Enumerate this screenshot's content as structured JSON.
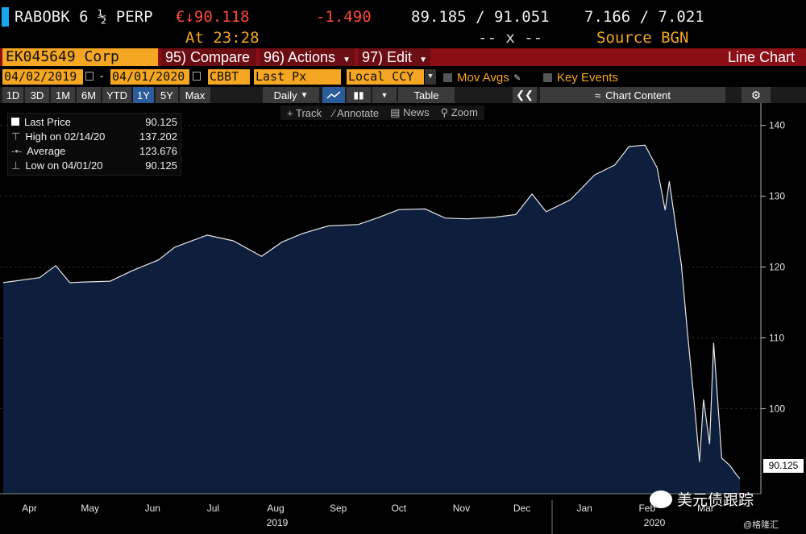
{
  "ticker": {
    "name": "RABOBK 6 ½ PERP",
    "price": "€↓90.118",
    "change": "-1.490",
    "bid_ask": "89.185 / 91.051",
    "yield": "7.166 / 7.021",
    "time": "At 23:28",
    "size": "-- x --",
    "source": "Source BGN"
  },
  "toolbar": {
    "security": "EK045649 Corp",
    "compare": "95) Compare",
    "actions": "96) Actions",
    "edit": "97) Edit",
    "chart_type": "Line Chart"
  },
  "controls": {
    "start_date": "04/02/2019",
    "end_date": "04/01/2020",
    "source": "CBBT",
    "field": "Last Px",
    "currency": "Local CCY",
    "mov_avgs": "Mov Avgs",
    "key_events": "Key Events"
  },
  "periods": [
    "1D",
    "3D",
    "1M",
    "6M",
    "YTD",
    "1Y",
    "5Y",
    "Max"
  ],
  "selected_period": "1Y",
  "frequency": "Daily",
  "table_label": "Table",
  "chart_content": "Chart Content",
  "tools": {
    "track": "Track",
    "annotate": "Annotate",
    "news": "News",
    "zoom": "Zoom"
  },
  "legend": {
    "last_label": "Last Price",
    "last_value": "90.125",
    "high_label": "High on 02/14/20",
    "high_value": "137.202",
    "avg_label": "Average",
    "avg_value": "123.676",
    "low_label": "Low on 04/01/20",
    "low_value": "90.125"
  },
  "last_tag": "90.125",
  "watermark": "美元债跟踪",
  "credit": "@格隆汇",
  "chart_data": {
    "type": "area",
    "ylim": [
      88,
      142
    ],
    "y_ticks": [
      100,
      110,
      120,
      130,
      140
    ],
    "x_ticks": [
      "Apr",
      "May",
      "Jun",
      "Jul",
      "Aug",
      "Sep",
      "Oct",
      "Nov",
      "Dec",
      "Jan",
      "Feb",
      "Mar"
    ],
    "year_labels": [
      "2019",
      "2020"
    ],
    "x_range": [
      "2019-04-02",
      "2020-04-01"
    ],
    "series": [
      {
        "x": [
          "2019-04-02",
          "2019-04-20",
          "2019-04-28",
          "2019-05-05",
          "2019-05-14",
          "2019-05-25",
          "2019-06-05",
          "2019-06-18",
          "2019-06-26",
          "2019-07-12",
          "2019-07-25",
          "2019-08-08",
          "2019-08-18",
          "2019-08-28",
          "2019-09-10",
          "2019-09-25",
          "2019-10-05",
          "2019-10-15",
          "2019-10-28",
          "2019-11-07",
          "2019-11-18",
          "2019-12-01",
          "2019-12-12",
          "2019-12-20",
          "2019-12-27",
          "2020-01-08",
          "2020-01-20",
          "2020-01-30",
          "2020-02-06",
          "2020-02-14",
          "2020-02-20",
          "2020-02-24",
          "2020-02-26",
          "2020-03-03",
          "2020-03-06",
          "2020-03-09",
          "2020-03-12",
          "2020-03-14",
          "2020-03-17",
          "2020-03-19",
          "2020-03-23",
          "2020-03-27",
          "2020-03-30",
          "2020-04-01"
        ],
        "y": [
          117.8,
          118.5,
          120.2,
          117.8,
          117.9,
          118.0,
          119.5,
          121.0,
          122.8,
          124.5,
          123.7,
          121.5,
          123.5,
          124.7,
          125.8,
          126.0,
          127.0,
          128.1,
          128.2,
          126.9,
          126.8,
          127.0,
          127.4,
          130.3,
          127.8,
          129.5,
          133.0,
          134.4,
          137.0,
          137.2,
          134.0,
          128.0,
          132.1,
          120.3,
          110.8,
          102.0,
          92.5,
          101.3,
          95.0,
          109.3,
          93.0,
          92.0,
          90.8,
          90.1
        ]
      }
    ]
  }
}
